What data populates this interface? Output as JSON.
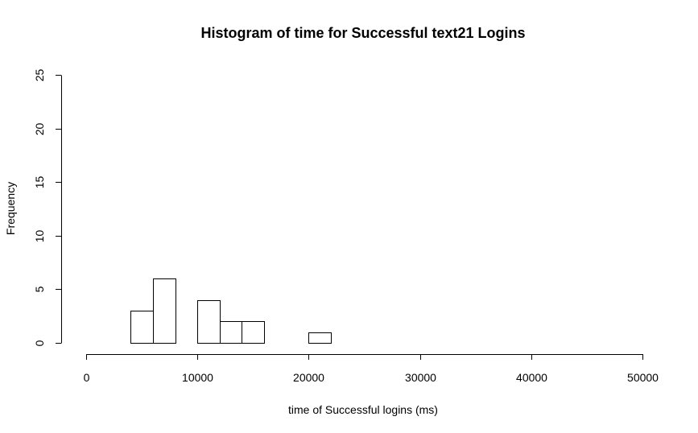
{
  "chart_data": {
    "type": "bar",
    "subtype": "histogram",
    "title": "Histogram of time for Successful text21 Logins",
    "xlabel": "time of Successful logins (ms)",
    "ylabel": "Frequency",
    "xlim": [
      0,
      50000
    ],
    "ylim": [
      0,
      25
    ],
    "x_ticks": [
      0,
      10000,
      20000,
      30000,
      40000,
      50000
    ],
    "y_ticks": [
      0,
      5,
      10,
      15,
      20,
      25
    ],
    "bin_width": 2000,
    "bins": [
      {
        "start": 4000,
        "end": 6000,
        "count": 3
      },
      {
        "start": 6000,
        "end": 8000,
        "count": 6
      },
      {
        "start": 8000,
        "end": 10000,
        "count": 0
      },
      {
        "start": 10000,
        "end": 12000,
        "count": 4
      },
      {
        "start": 12000,
        "end": 14000,
        "count": 2
      },
      {
        "start": 14000,
        "end": 16000,
        "count": 2
      },
      {
        "start": 16000,
        "end": 18000,
        "count": 0
      },
      {
        "start": 18000,
        "end": 20000,
        "count": 0
      },
      {
        "start": 20000,
        "end": 22000,
        "count": 1
      }
    ],
    "grid": false,
    "legend": "none"
  }
}
